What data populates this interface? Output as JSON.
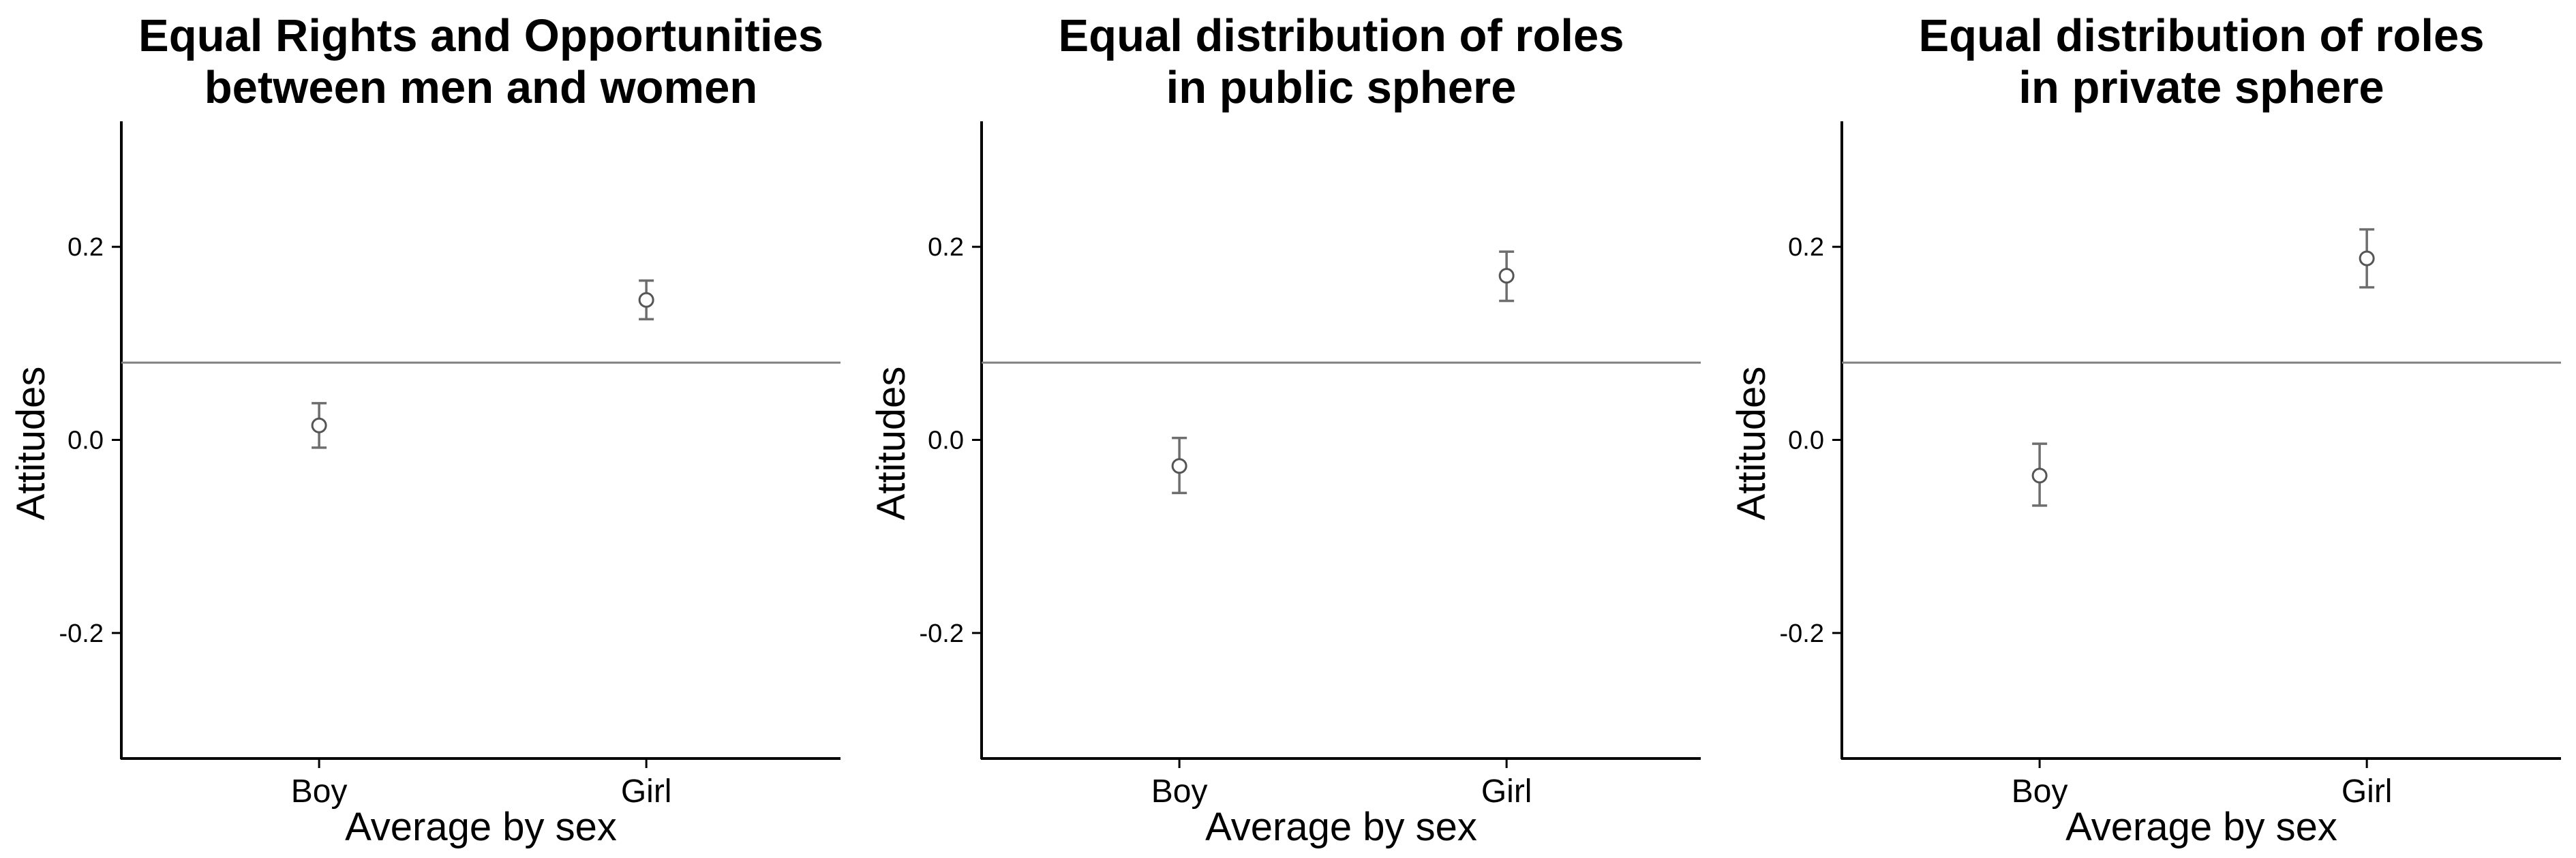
{
  "chart_data": [
    {
      "type": "scatter",
      "title": [
        "Equal Rights and Opportunities",
        "between men and women"
      ],
      "xlabel": "Average by sex",
      "ylabel": "Attitudes",
      "categories": [
        "Boy",
        "Girl"
      ],
      "values": [
        0.015,
        0.145
      ],
      "error_low": [
        -0.008,
        0.125
      ],
      "error_high": [
        0.038,
        0.165
      ],
      "reference_line": 0.08,
      "yticks": [
        -0.2,
        0.0,
        0.2
      ],
      "ytick_labels": [
        "-0.2",
        "0.0",
        "0.2"
      ],
      "ylim": [
        -0.33,
        0.33
      ],
      "grid": false
    },
    {
      "type": "scatter",
      "title": [
        "Equal distribution of roles",
        "in public sphere"
      ],
      "xlabel": "Average by sex",
      "ylabel": "Attitudes",
      "categories": [
        "Boy",
        "Girl"
      ],
      "values": [
        -0.027,
        0.17
      ],
      "error_low": [
        -0.055,
        0.144
      ],
      "error_high": [
        0.002,
        0.195
      ],
      "reference_line": 0.08,
      "yticks": [
        -0.2,
        0.0,
        0.2
      ],
      "ytick_labels": [
        "-0.2",
        "0.0",
        "0.2"
      ],
      "ylim": [
        -0.33,
        0.33
      ],
      "grid": false
    },
    {
      "type": "scatter",
      "title": [
        "Equal distribution of roles",
        "in private sphere"
      ],
      "xlabel": "Average by sex",
      "ylabel": "Attitudes",
      "categories": [
        "Boy",
        "Girl"
      ],
      "values": [
        -0.037,
        0.188
      ],
      "error_low": [
        -0.068,
        0.158
      ],
      "error_high": [
        -0.004,
        0.218
      ],
      "reference_line": 0.08,
      "yticks": [
        -0.2,
        0.0,
        0.2
      ],
      "ytick_labels": [
        "-0.2",
        "0.0",
        "0.2"
      ],
      "ylim": [
        -0.33,
        0.33
      ],
      "grid": false
    }
  ],
  "colors": {
    "axis": "#000000",
    "reference_line": "#808080",
    "error_bar": "#6e6e6e",
    "marker_stroke": "#555555",
    "marker_fill": "#ffffff"
  }
}
